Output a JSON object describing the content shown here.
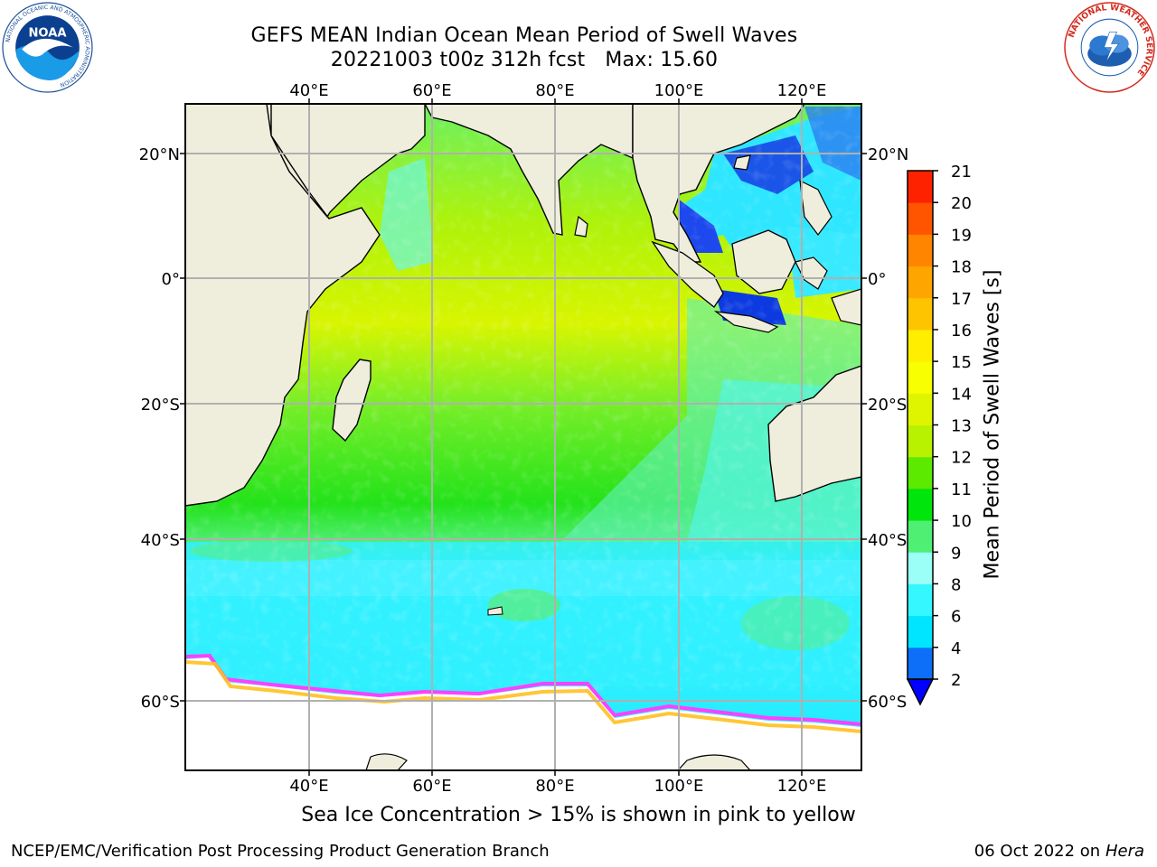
{
  "header": {
    "title_line1": "GEFS MEAN Indian Ocean Mean Period of Swell Waves",
    "run_info": "20221003 t00z 312h fcst",
    "max_info": "Max: 15.60"
  },
  "logos": {
    "left": {
      "text": "NOAA",
      "ring_text": "NATIONAL OCEANIC AND ATMOSPHERIC ADMINISTRATION",
      "bottom_text": "U.S. DEPARTMENT OF COMMERCE"
    },
    "right": {
      "ring_text": "NATIONAL WEATHER SERVICE"
    }
  },
  "map": {
    "lon_labels": [
      "40°E",
      "60°E",
      "80°E",
      "100°E",
      "120°E"
    ],
    "lat_labels": [
      "20°N",
      "0°",
      "20°S",
      "40°S",
      "60°S"
    ],
    "colors": {
      "land": "#efeedc",
      "ocean_mid": "#66ef6a",
      "ocean_south": "#36f3ff",
      "ice_edge": "#ff40ff"
    }
  },
  "colorbar": {
    "label": "Mean Period of Swell Waves [s]",
    "ticks": [
      "2",
      "4",
      "6",
      "8",
      "9",
      "10",
      "11",
      "12",
      "13",
      "14",
      "15",
      "16",
      "17",
      "18",
      "19",
      "20",
      "21"
    ],
    "colors": [
      "#0d6ff8",
      "#00e5ff",
      "#34f7ff",
      "#9bfff7",
      "#4fef74",
      "#00e50c",
      "#5bea00",
      "#b8f200",
      "#dff500",
      "#f7ff00",
      "#ffee00",
      "#ffc400",
      "#ffa500",
      "#ff8400",
      "#ff5500",
      "#ff2200"
    ],
    "under_color": "#0000ff"
  },
  "footer": {
    "note": "Sea Ice Concentration > 15% is shown in pink to yellow",
    "left": "NCEP/EMC/Verification Post Processing Product Generation Branch",
    "right_text": "06 Oct 2022 on ",
    "right_host": "Hera"
  }
}
